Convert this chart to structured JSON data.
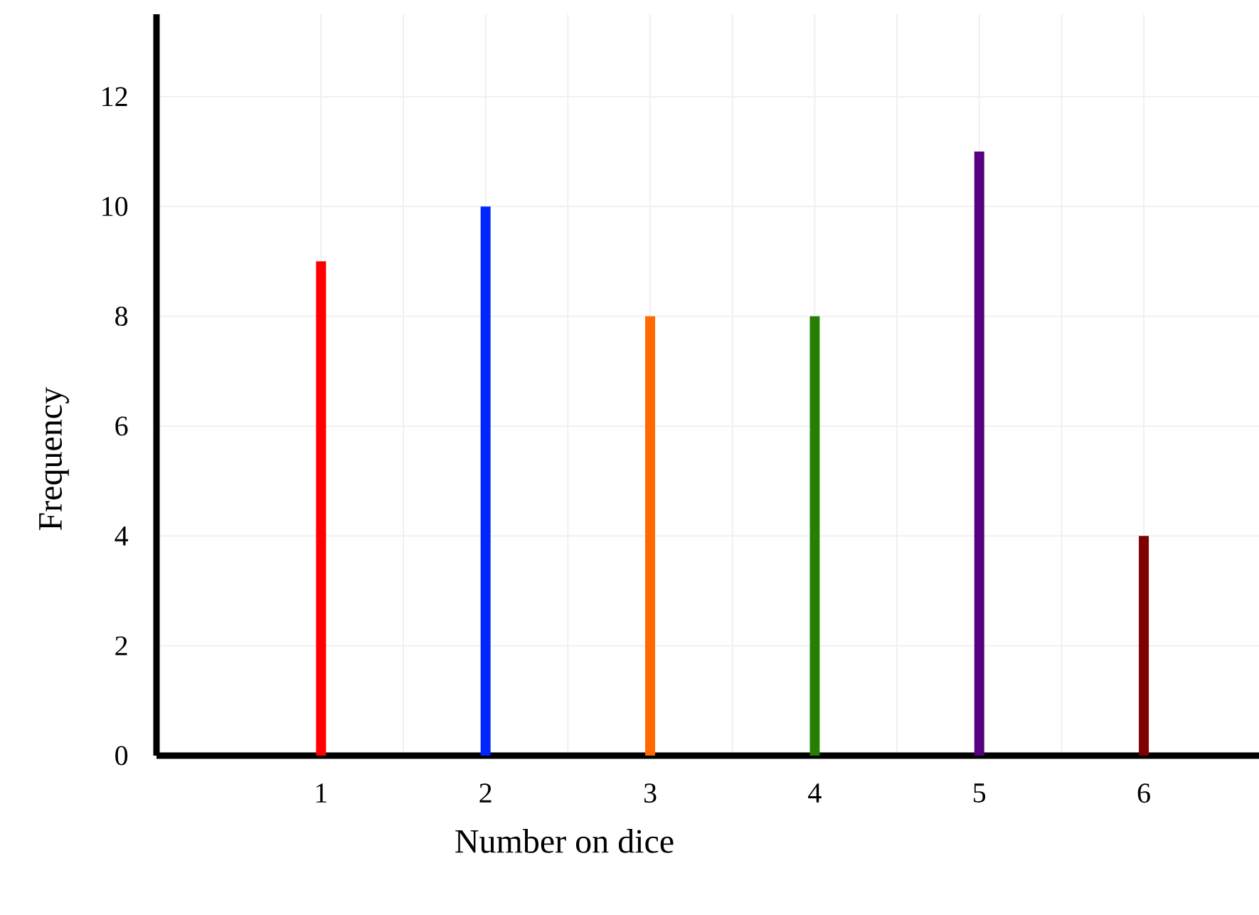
{
  "chart_data": {
    "type": "bar",
    "xlabel": "Number on dice",
    "ylabel": "Frequency",
    "x": [
      1,
      2,
      3,
      4,
      5,
      6
    ],
    "values": [
      9,
      10,
      8,
      8,
      11,
      4
    ],
    "colors": [
      "#ff0000",
      "#0026ff",
      "#ff6a00",
      "#267f00",
      "#57007f",
      "#7f0000"
    ],
    "xlim": [
      0,
      6.7
    ],
    "xticks": [
      1,
      2,
      3,
      4,
      5,
      6
    ],
    "ylim": [
      0,
      13.5
    ],
    "yticks": [
      0,
      2,
      4,
      6,
      8,
      10,
      12
    ],
    "grid": true
  }
}
